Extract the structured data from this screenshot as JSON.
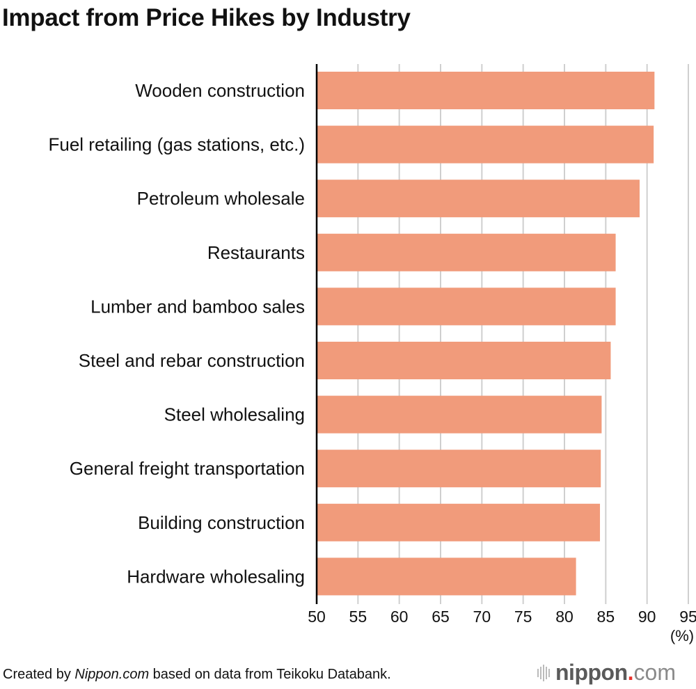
{
  "chart_data": {
    "type": "bar",
    "orientation": "horizontal",
    "title": "Impact from Price Hikes by Industry",
    "categories": [
      "Wooden construction",
      "Fuel retailing (gas stations, etc.)",
      "Petroleum wholesale",
      "Restaurants",
      "Lumber and bamboo sales",
      "Steel and rebar construction",
      "Steel wholesaling",
      "General freight transportation",
      "Building construction",
      "Hardware wholesaling"
    ],
    "values": [
      90.9,
      90.8,
      89.1,
      86.2,
      86.2,
      85.6,
      84.5,
      84.4,
      84.3,
      81.4
    ],
    "xlabel": "(%)",
    "ylabel": "",
    "xlim": [
      50,
      95
    ],
    "xticks": [
      50,
      55,
      60,
      65,
      70,
      75,
      80,
      85,
      90,
      95
    ],
    "grid": true,
    "legend": "none",
    "bar_color": "#f19b7b"
  },
  "footer": {
    "prefix": "Created by ",
    "source_name": "Nippon.com",
    "suffix": " based on data from Teikoku Databank."
  },
  "logo": {
    "word": "nippon",
    "dot": ".",
    "tld": "com"
  }
}
